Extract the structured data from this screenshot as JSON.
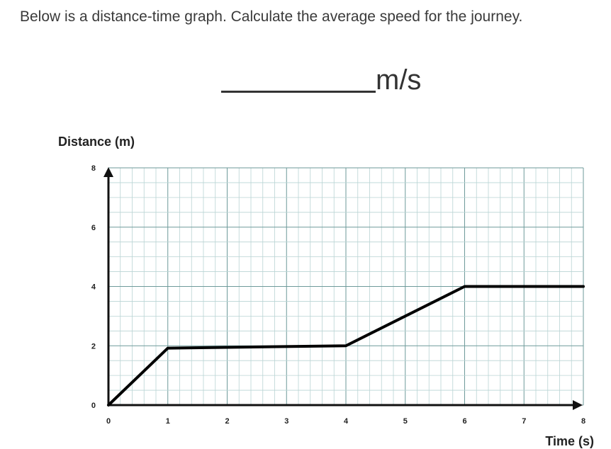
{
  "question": {
    "text": "Below is a distance-time graph. Calculate the average speed for the journey."
  },
  "answer": {
    "unit": "m/s"
  },
  "colors": {
    "grid_major": "#6e9a9a",
    "grid_minor": "#b9d4d4",
    "axis": "#111111",
    "line": "#000000"
  },
  "chart_data": {
    "type": "line",
    "xlabel": "Time (s)",
    "ylabel": "Distance (m)",
    "xlim": [
      0,
      8
    ],
    "ylim": [
      0,
      8
    ],
    "x_ticks": [
      "0",
      "1",
      "2",
      "3",
      "4",
      "5",
      "6",
      "7",
      "8"
    ],
    "y_ticks": [
      "0",
      "2",
      "4",
      "6",
      "8"
    ],
    "grid": true,
    "series": [
      {
        "x": [
          0,
          1,
          4,
          6,
          8
        ],
        "y": [
          0,
          1.92,
          2.0,
          4.0,
          4.0
        ]
      }
    ]
  }
}
